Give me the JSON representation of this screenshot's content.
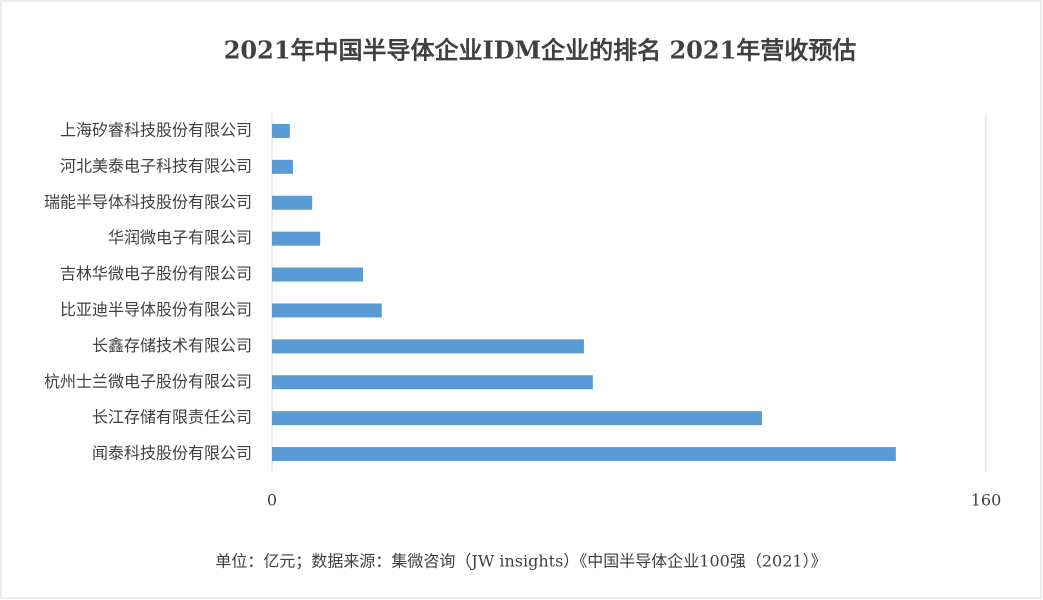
{
  "chart_data": {
    "type": "hbar",
    "title": "2021年中国半导体企业IDM企业的排名 2021年营收预估",
    "categories": [
      "上海矽睿科技股份有限公司",
      "河北美泰电子科技有限公司",
      "瑞能半导体科技股份有限公司",
      "华润微电子有限公司",
      "吉林华微电子股份有限公司",
      "比亚迪半导体股份有限公司",
      "长鑫存储技术有限公司",
      "杭州士兰微电子股份有限公司",
      "长江存储有限责任公司",
      "闻泰科技股份有限公司"
    ],
    "values": [
      4.0,
      4.7,
      9.0,
      10.8,
      20.4,
      24.6,
      69.9,
      71.9,
      109.8,
      139.8
    ],
    "color": "#5b9bd5",
    "xlim": [
      0,
      160
    ],
    "xticks": [
      0,
      160
    ],
    "grid": true,
    "note": "单位：亿元；数据来源：集微咨询（JW insights）《中国半导体企业100强（2021）》"
  }
}
